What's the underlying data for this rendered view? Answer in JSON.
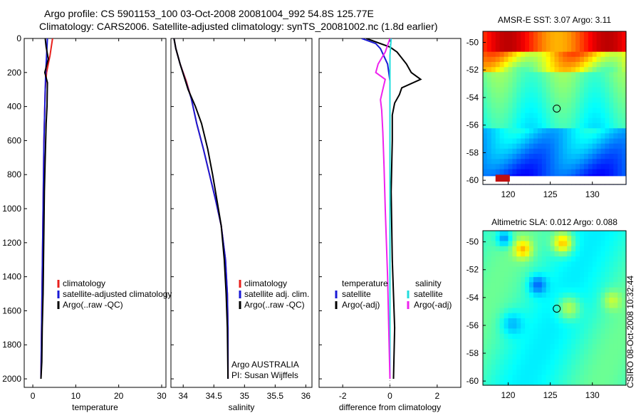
{
  "header": {
    "line1": "Argo profile: CS 5901153_100 03-Oct-2008 20081004_992 54.8S 125.77E",
    "line2": "Climatology: CARS2006. Satellite-adjusted climatology: synTS_20081002.nc (1.8d earlier)"
  },
  "side_credit": "CSIRO 08-Oct-2008 10:32:44",
  "chart_data": [
    {
      "type": "line",
      "xlabel": "temperature",
      "xlim": [
        -2,
        31
      ],
      "ylim": [
        0,
        2050
      ],
      "y_reversed": true,
      "xticks": [
        0,
        10,
        20,
        30
      ],
      "yticks": [
        0,
        200,
        400,
        600,
        800,
        1000,
        1200,
        1400,
        1600,
        1800,
        2000
      ],
      "legend": [
        "climatology",
        "satellite-adjusted climatology",
        "Argo(..raw -QC)"
      ],
      "series": [
        {
          "name": "climatology",
          "color": "#e8201c",
          "x": [
            4.6,
            4.0,
            3.2,
            2.9,
            2.8,
            2.6,
            2.5,
            2.4,
            2.3,
            2.2,
            2.1,
            2.0,
            1.9
          ],
          "y": [
            0,
            100,
            200,
            300,
            400,
            600,
            800,
            1000,
            1200,
            1400,
            1600,
            1800,
            2000
          ]
        },
        {
          "name": "satellite-adjusted climatology",
          "color": "#1a1ad6",
          "x": [
            3.4,
            3.2,
            3.0,
            2.9,
            2.8,
            2.6,
            2.5,
            2.4,
            2.3,
            2.2,
            2.1,
            2.0,
            1.9
          ],
          "y": [
            0,
            100,
            200,
            300,
            400,
            600,
            800,
            1000,
            1200,
            1400,
            1600,
            1800,
            2000
          ]
        },
        {
          "name": "Argo(..raw -QC)",
          "color": "#000000",
          "x": [
            2.9,
            3.1,
            3.6,
            2.8,
            3.4,
            3.3,
            3.1,
            2.9,
            2.7,
            2.6,
            2.5,
            2.4,
            2.2,
            2.1,
            1.9
          ],
          "y": [
            0,
            50,
            120,
            200,
            260,
            400,
            500,
            700,
            900,
            1100,
            1300,
            1500,
            1700,
            1900,
            2000
          ]
        }
      ]
    },
    {
      "type": "line",
      "xlabel": "salinity",
      "xlim": [
        33.8,
        36.1
      ],
      "ylim": [
        0,
        2050
      ],
      "y_reversed": true,
      "xticks": [
        34,
        34.5,
        35,
        35.5,
        36
      ],
      "legend": [
        "climatology",
        "satellite adj. clim.",
        "Argo(..raw -QC)"
      ],
      "annotation": [
        "Argo AUSTRALIA",
        "PI: Susan Wijffels"
      ],
      "series": [
        {
          "name": "climatology",
          "color": "#e8201c",
          "x": [
            33.85,
            33.88,
            33.95,
            34.05,
            34.13,
            34.22,
            34.33,
            34.43,
            34.53,
            34.62,
            34.69,
            34.72,
            34.73,
            34.73
          ],
          "y": [
            0,
            60,
            150,
            250,
            350,
            500,
            650,
            800,
            950,
            1100,
            1300,
            1500,
            1700,
            2000
          ]
        },
        {
          "name": "satellite adj. clim.",
          "color": "#1a1ad6",
          "x": [
            33.85,
            33.88,
            33.95,
            34.04,
            34.13,
            34.22,
            34.33,
            34.43,
            34.53,
            34.62,
            34.69,
            34.72,
            34.73,
            34.73
          ],
          "y": [
            0,
            60,
            150,
            250,
            350,
            500,
            650,
            800,
            950,
            1100,
            1300,
            1500,
            1700,
            2000
          ]
        },
        {
          "name": "Argo(..raw -QC)",
          "color": "#000000",
          "x": [
            33.85,
            33.88,
            33.95,
            34.08,
            34.2,
            34.3,
            34.4,
            34.48,
            34.55,
            34.62,
            34.67,
            34.7,
            34.72,
            34.73
          ],
          "y": [
            0,
            60,
            150,
            300,
            400,
            500,
            650,
            800,
            950,
            1100,
            1300,
            1500,
            1700,
            2000
          ]
        }
      ]
    },
    {
      "type": "line",
      "xlabel": "difference from climatology",
      "xlim": [
        -3,
        3
      ],
      "ylim": [
        0,
        2050
      ],
      "y_reversed": true,
      "xticks": [
        -2,
        0,
        2
      ],
      "legend_groups": [
        {
          "heading": "temperature",
          "items": [
            "satellite",
            "Argo(-adj)"
          ]
        },
        {
          "heading": "salinity",
          "items": [
            "satellite",
            "Argo(-adj)"
          ]
        }
      ],
      "series": [
        {
          "name": "temperature satellite",
          "color": "#1a1ad6",
          "x": [
            -1.2,
            -0.6,
            -0.4,
            -0.1,
            0.0,
            0.0,
            0.0,
            0.0,
            0.0,
            0.0
          ],
          "y": [
            0,
            30,
            60,
            150,
            250,
            400,
            800,
            1200,
            1600,
            2000
          ]
        },
        {
          "name": "temperature Argo(-adj)",
          "color": "#000000",
          "x": [
            -1.0,
            0.0,
            0.3,
            0.7,
            0.9,
            1.3,
            0.5,
            0.4,
            0.2,
            0.1,
            0.1,
            0.05,
            0.1,
            0.2,
            0.15
          ],
          "y": [
            0,
            50,
            80,
            150,
            200,
            240,
            290,
            330,
            380,
            450,
            600,
            900,
            1300,
            1700,
            2000
          ]
        },
        {
          "name": "salinity satellite",
          "color": "#22dddd",
          "x": [
            0.05,
            0.0,
            0.0,
            0.0,
            0.0,
            0.0,
            0.0
          ],
          "y": [
            0,
            100,
            300,
            600,
            1000,
            1500,
            2000
          ]
        },
        {
          "name": "salinity Argo(-adj)",
          "color": "#ee22ee",
          "x": [
            0.0,
            -0.2,
            -0.5,
            -0.6,
            -0.2,
            -0.3,
            -0.4,
            -0.35,
            -0.3,
            -0.25,
            -0.2,
            -0.1,
            -0.05,
            0.0
          ],
          "y": [
            0,
            80,
            150,
            200,
            240,
            300,
            360,
            420,
            550,
            750,
            1000,
            1400,
            1700,
            2000
          ]
        }
      ]
    },
    {
      "type": "heatmap",
      "title": "AMSR-E SST: 3.07 Argo: 3.11",
      "xlim": [
        117,
        134
      ],
      "ylim": [
        -60.3,
        -49.2
      ],
      "xticks": [
        120,
        125,
        130
      ],
      "yticks": [
        -50,
        -52,
        -54,
        -56,
        -58,
        -60
      ],
      "marker": {
        "lon": 125.77,
        "lat": -54.8
      }
    },
    {
      "type": "heatmap",
      "title": "Altimetric SLA: 0.012 Argo: 0.088",
      "xlim": [
        117,
        134
      ],
      "ylim": [
        -60.3,
        -49.2
      ],
      "xticks": [
        120,
        125,
        130
      ],
      "yticks": [
        -50,
        -52,
        -54,
        -56,
        -58,
        -60
      ],
      "marker": {
        "lon": 125.77,
        "lat": -54.8
      }
    }
  ]
}
